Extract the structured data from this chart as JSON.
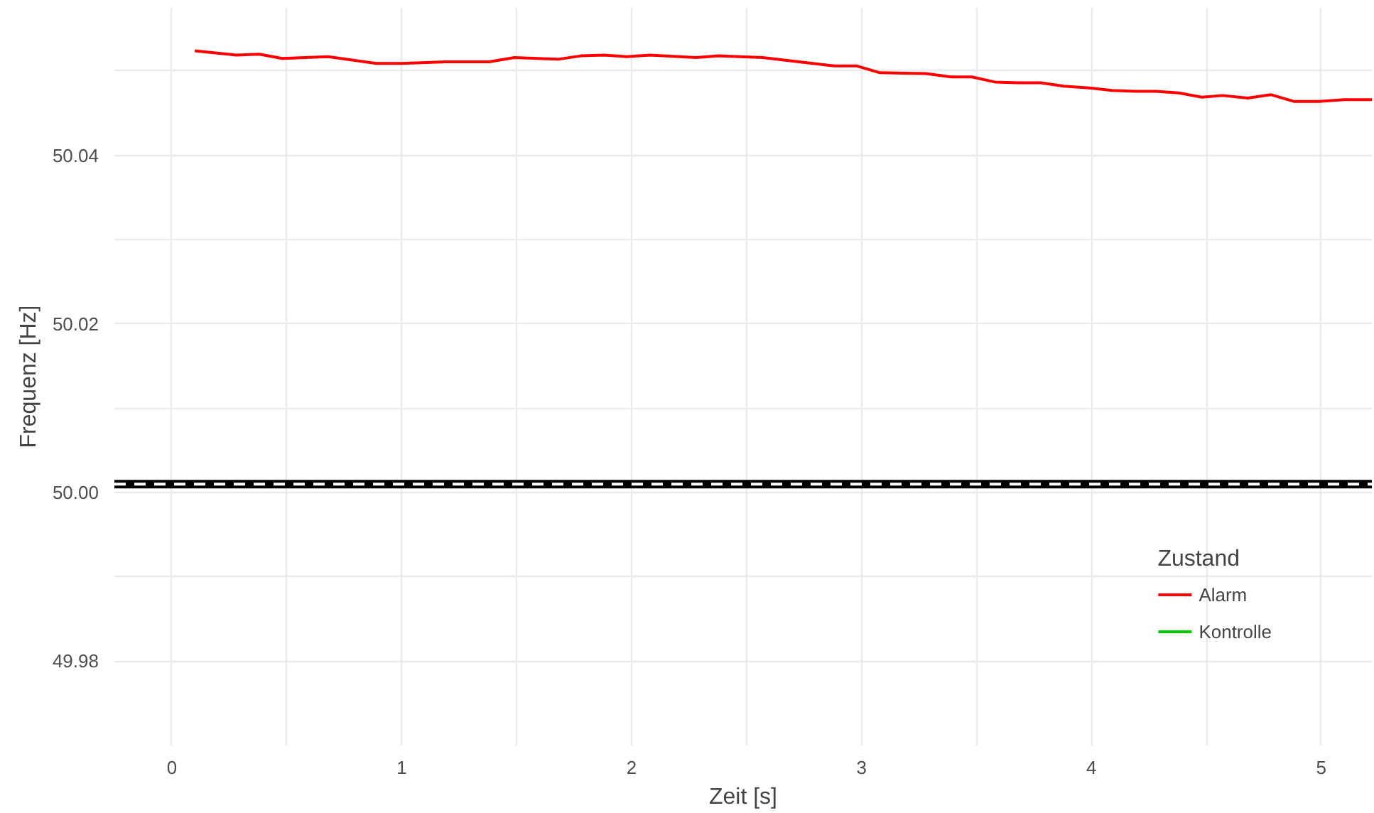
{
  "chart_data": {
    "type": "line",
    "xlabel": "Zeit [s]",
    "ylabel": "Frequenz [Hz]",
    "legend_title": "Zustand",
    "x": [
      0.1,
      0.28,
      0.38,
      0.48,
      0.68,
      0.89,
      1.0,
      1.19,
      1.38,
      1.49,
      1.68,
      1.78,
      1.88,
      1.98,
      2.08,
      2.28,
      2.38,
      2.57,
      2.88,
      2.98,
      3.08,
      3.28,
      3.39,
      3.48,
      3.58,
      3.68,
      3.78,
      3.88,
      3.99,
      4.09,
      4.19,
      4.28,
      4.38,
      4.48,
      4.57,
      4.68,
      4.78,
      4.88,
      4.99,
      5.1,
      5.22
    ],
    "series": [
      {
        "name": "Alarm",
        "color": "#ff0000",
        "values": [
          50.0524,
          50.0519,
          50.052,
          50.0515,
          50.0517,
          50.0509,
          50.0509,
          50.0511,
          50.0511,
          50.0516,
          50.0514,
          50.0518,
          50.0519,
          50.0517,
          50.0519,
          50.0516,
          50.0518,
          50.0516,
          50.0506,
          50.0506,
          50.0498,
          50.0497,
          50.0493,
          50.0493,
          50.0487,
          50.0486,
          50.0486,
          50.0482,
          50.048,
          50.0477,
          50.0476,
          50.0476,
          50.0474,
          50.0469,
          50.0471,
          50.0468,
          50.0472,
          50.0464,
          50.0464,
          50.0466,
          50.0466
        ]
      },
      {
        "name": "Kontrolle",
        "color": "#00cc00",
        "values": [
          null,
          null,
          null,
          null,
          null,
          null,
          null,
          null,
          null,
          null,
          null,
          null,
          null,
          null,
          null,
          null,
          null,
          null,
          null,
          null,
          null,
          null,
          null,
          null,
          null,
          null,
          null,
          null,
          null,
          null,
          null,
          null,
          null,
          null,
          null,
          null,
          null,
          null,
          null,
          null,
          null
        ]
      }
    ],
    "ref_lines": [
      {
        "axis": "y",
        "value": 50.001,
        "color": "#000000",
        "line_style": "solid"
      },
      {
        "axis": "y",
        "value": 50.001,
        "color": "#ffffff",
        "line_style": "dashed"
      }
    ],
    "xlim": [
      -0.25,
      5.22
    ],
    "ylim": [
      49.97,
      50.0575
    ],
    "xticks": [
      0,
      {
        "value": 0.5,
        "label": null
      },
      1,
      {
        "value": 1.5,
        "label": null
      },
      2,
      {
        "value": 2.5,
        "label": null
      },
      3,
      {
        "value": 3.5,
        "label": null
      },
      4,
      {
        "value": 4.5,
        "label": null
      },
      5
    ],
    "yticks": [
      {
        "value": 49.98,
        "label": "49.98"
      },
      {
        "value": 49.99,
        "label": null
      },
      {
        "value": 50.0,
        "label": "50.00"
      },
      {
        "value": 50.01,
        "label": null
      },
      {
        "value": 50.02,
        "label": "50.02"
      },
      {
        "value": 50.03,
        "label": null
      },
      {
        "value": 50.04,
        "label": "50.04"
      },
      {
        "value": 50.05,
        "label": null
      }
    ],
    "grid": true,
    "legend": "bottom right",
    "line_style": "solid",
    "marker": "none"
  }
}
